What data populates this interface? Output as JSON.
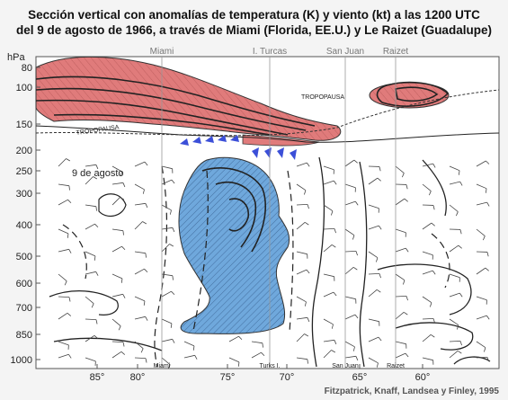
{
  "title_line1": "Sección vertical con anomalías de temperatura (K) y viento (kt) a las 1200 UTC",
  "title_line2": "del 9 de agosto de 1966, a través de Miami (Florida, EE.U.) y Le Raizet (Guadalupe)",
  "credit": "Fitzpatrick, Knaff, Landsea y Finley, 1995",
  "pressure_unit": "hPa",
  "pressure_levels": [
    "80",
    "100",
    "150",
    "200",
    "250",
    "300",
    "400",
    "500",
    "600",
    "700",
    "850",
    "1000"
  ],
  "longitudes": [
    "85°",
    "80°",
    "75°",
    "70°",
    "65°",
    "60°"
  ],
  "stations_top": [
    "Miami",
    "I. Turcas",
    "San Juan",
    "Raizet"
  ],
  "stations_bottom": [
    "Miami",
    "Turks I.",
    "San Juan",
    "Raizet"
  ],
  "date_label": "9 de agosto",
  "tropopause_label": "TROPOPAUSA",
  "colors": {
    "warm": "#e07b7b",
    "cold": "#6fa8dc",
    "wind_flag": "#3b4fd8"
  }
}
